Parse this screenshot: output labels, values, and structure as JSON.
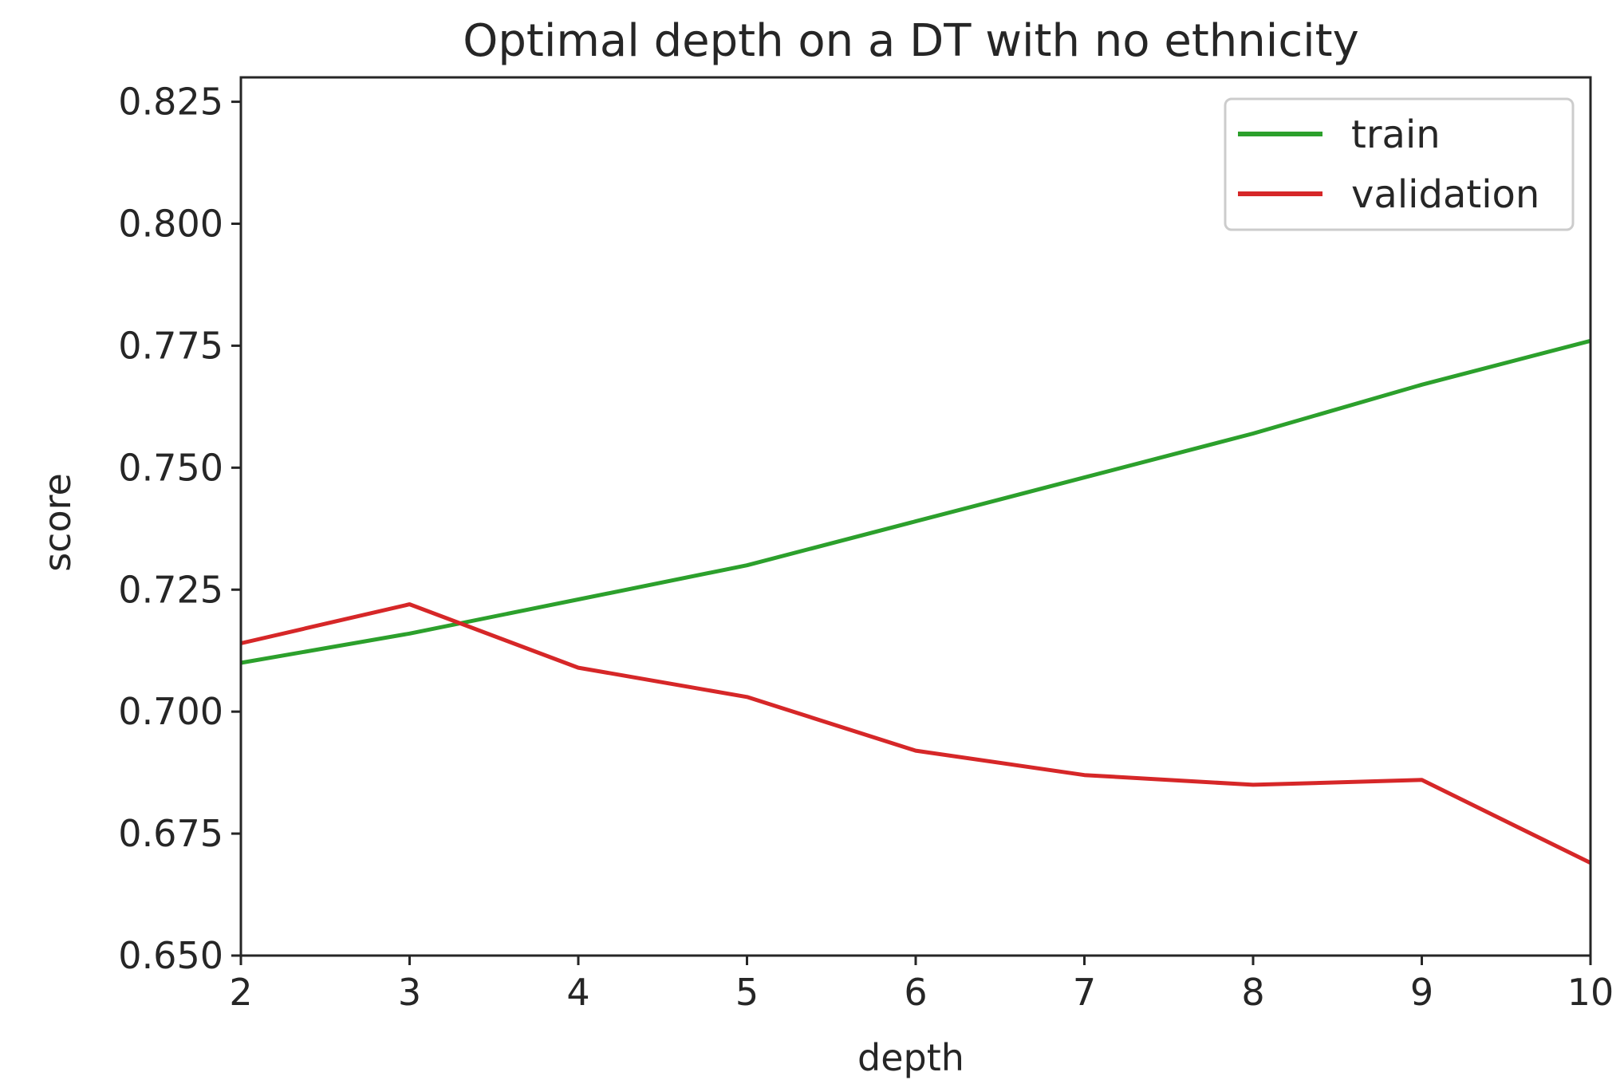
{
  "chart_data": {
    "type": "line",
    "title": "Optimal depth on a DT with no ethnicity",
    "xlabel": "depth",
    "ylabel": "score",
    "x": [
      2,
      3,
      4,
      5,
      6,
      7,
      8,
      9,
      10
    ],
    "xlim": [
      2,
      10
    ],
    "ylim": [
      0.65,
      0.83
    ],
    "xticks": [
      2,
      3,
      4,
      5,
      6,
      7,
      8,
      9,
      10
    ],
    "yticks": [
      0.65,
      0.675,
      0.7,
      0.725,
      0.75,
      0.775,
      0.8,
      0.825
    ],
    "ytick_labels": [
      "0.650",
      "0.675",
      "0.700",
      "0.725",
      "0.750",
      "0.775",
      "0.800",
      "0.825"
    ],
    "grid": false,
    "legend_position": "top-right",
    "series": [
      {
        "name": "train",
        "color": "#2ca02c",
        "values": [
          0.71,
          0.716,
          0.723,
          0.73,
          0.739,
          0.748,
          0.757,
          0.767,
          0.776
        ]
      },
      {
        "name": "validation",
        "color": "#d62728",
        "values": [
          0.714,
          0.722,
          0.709,
          0.703,
          0.692,
          0.687,
          0.685,
          0.686,
          0.669
        ]
      }
    ]
  }
}
